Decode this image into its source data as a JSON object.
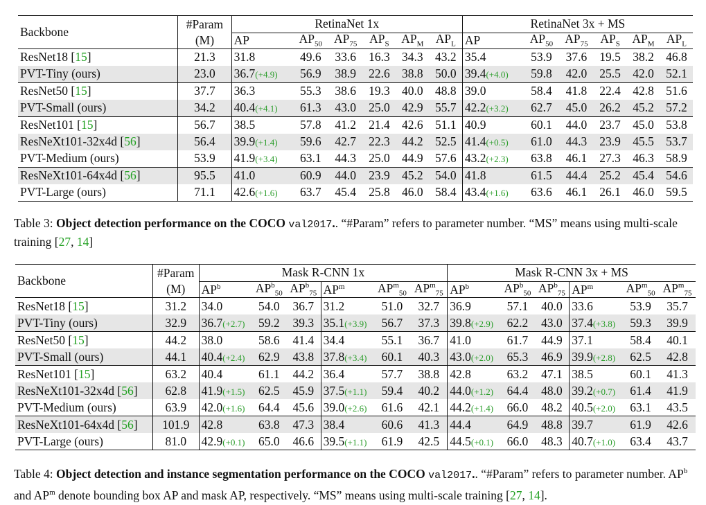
{
  "table3": {
    "backbone_header": "Backbone",
    "param_header": [
      "#Param",
      "(M)"
    ],
    "group1": "RetinaNet 1x",
    "group2": "RetinaNet 3x + MS",
    "subcols": [
      "AP",
      "AP",
      "AP",
      "AP",
      "AP",
      "AP"
    ],
    "subscripts": [
      "",
      "50",
      "75",
      "S",
      "M",
      "L"
    ],
    "rows": [
      {
        "backbone": "ResNet18",
        "ref": "15",
        "param": "21.3",
        "a": [
          "31.8",
          "",
          "49.6",
          "33.6",
          "16.3",
          "34.3",
          "43.2"
        ],
        "b": [
          "35.4",
          "",
          "53.9",
          "37.6",
          "19.5",
          "38.2",
          "46.8"
        ]
      },
      {
        "backbone": "PVT-Tiny (ours)",
        "ref": "",
        "param": "23.0",
        "a": [
          "36.7",
          "(+4.9)",
          "56.9",
          "38.9",
          "22.6",
          "38.8",
          "50.0"
        ],
        "b": [
          "39.4",
          "(+4.0)",
          "59.8",
          "42.0",
          "25.5",
          "42.0",
          "52.1"
        ]
      },
      {
        "backbone": "ResNet50",
        "ref": "15",
        "param": "37.7",
        "a": [
          "36.3",
          "",
          "55.3",
          "38.6",
          "19.3",
          "40.0",
          "48.8"
        ],
        "b": [
          "39.0",
          "",
          "58.4",
          "41.8",
          "22.4",
          "42.8",
          "51.6"
        ]
      },
      {
        "backbone": "PVT-Small (ours)",
        "ref": "",
        "param": "34.2",
        "a": [
          "40.4",
          "(+4.1)",
          "61.3",
          "43.0",
          "25.0",
          "42.9",
          "55.7"
        ],
        "b": [
          "42.2",
          "(+3.2)",
          "62.7",
          "45.0",
          "26.2",
          "45.2",
          "57.2"
        ]
      },
      {
        "backbone": "ResNet101",
        "ref": "15",
        "param": "56.7",
        "a": [
          "38.5",
          "",
          "57.8",
          "41.2",
          "21.4",
          "42.6",
          "51.1"
        ],
        "b": [
          "40.9",
          "",
          "60.1",
          "44.0",
          "23.7",
          "45.0",
          "53.8"
        ]
      },
      {
        "backbone": "ResNeXt101-32x4d",
        "ref": "56",
        "param": "56.4",
        "a": [
          "39.9",
          "(+1.4)",
          "59.6",
          "42.7",
          "22.3",
          "44.2",
          "52.5"
        ],
        "b": [
          "41.4",
          "(+0.5)",
          "61.0",
          "44.3",
          "23.9",
          "45.5",
          "53.7"
        ]
      },
      {
        "backbone": "PVT-Medium (ours)",
        "ref": "",
        "param": "53.9",
        "a": [
          "41.9",
          "(+3.4)",
          "63.1",
          "44.3",
          "25.0",
          "44.9",
          "57.6"
        ],
        "b": [
          "43.2",
          "(+2.3)",
          "63.8",
          "46.1",
          "27.3",
          "46.3",
          "58.9"
        ]
      },
      {
        "backbone": "ResNeXt101-64x4d",
        "ref": "56",
        "param": "95.5",
        "a": [
          "41.0",
          "",
          "60.9",
          "44.0",
          "23.9",
          "45.2",
          "54.0"
        ],
        "b": [
          "41.8",
          "",
          "61.5",
          "44.4",
          "25.2",
          "45.4",
          "54.6"
        ]
      },
      {
        "backbone": "PVT-Large (ours)",
        "ref": "",
        "param": "71.1",
        "a": [
          "42.6",
          "(+1.6)",
          "63.7",
          "45.4",
          "25.8",
          "46.0",
          "58.4"
        ],
        "b": [
          "43.4",
          "(+1.6)",
          "63.6",
          "46.1",
          "26.1",
          "46.0",
          "59.5"
        ]
      }
    ],
    "caption_label": "Table 3:",
    "caption_bold": "Object detection performance on the COCO",
    "caption_mono": "val2017",
    "caption_rest1": ". “#Param” refers to parameter number. “MS” means using multi-scale training [",
    "caption_ref1": "27",
    "caption_sep": ", ",
    "caption_ref2": "14",
    "caption_end": "]"
  },
  "table4": {
    "backbone_header": "Backbone",
    "param_header": [
      "#Param",
      "(M)"
    ],
    "group1": "Mask R-CNN 1x",
    "group2": "Mask R-CNN 3x + MS",
    "sup_b": "b",
    "sup_m": "m",
    "rows": [
      {
        "backbone": "ResNet18",
        "ref": "15",
        "param": "31.2",
        "a": [
          "34.0",
          "",
          "54.0",
          "36.7",
          "31.2",
          "",
          "51.0",
          "32.7"
        ],
        "b": [
          "36.9",
          "",
          "57.1",
          "40.0",
          "33.6",
          "",
          "53.9",
          "35.7"
        ]
      },
      {
        "backbone": "PVT-Tiny (ours)",
        "ref": "",
        "param": "32.9",
        "a": [
          "36.7",
          "(+2.7)",
          "59.2",
          "39.3",
          "35.1",
          "(+3.9)",
          "56.7",
          "37.3"
        ],
        "b": [
          "39.8",
          "(+2.9)",
          "62.2",
          "43.0",
          "37.4",
          "(+3.8)",
          "59.3",
          "39.9"
        ]
      },
      {
        "backbone": "ResNet50",
        "ref": "15",
        "param": "44.2",
        "a": [
          "38.0",
          "",
          "58.6",
          "41.4",
          "34.4",
          "",
          "55.1",
          "36.7"
        ],
        "b": [
          "41.0",
          "",
          "61.7",
          "44.9",
          "37.1",
          "",
          "58.4",
          "40.1"
        ]
      },
      {
        "backbone": "PVT-Small (ours)",
        "ref": "",
        "param": "44.1",
        "a": [
          "40.4",
          "(+2.4)",
          "62.9",
          "43.8",
          "37.8",
          "(+3.4)",
          "60.1",
          "40.3"
        ],
        "b": [
          "43.0",
          "(+2.0)",
          "65.3",
          "46.9",
          "39.9",
          "(+2.8)",
          "62.5",
          "42.8"
        ]
      },
      {
        "backbone": "ResNet101",
        "ref": "15",
        "param": "63.2",
        "a": [
          "40.4",
          "",
          "61.1",
          "44.2",
          "36.4",
          "",
          "57.7",
          "38.8"
        ],
        "b": [
          "42.8",
          "",
          "63.2",
          "47.1",
          "38.5",
          "",
          "60.1",
          "41.3"
        ]
      },
      {
        "backbone": "ResNeXt101-32x4d",
        "ref": "56",
        "param": "62.8",
        "a": [
          "41.9",
          "(+1.5)",
          "62.5",
          "45.9",
          "37.5",
          "(+1.1)",
          "59.4",
          "40.2"
        ],
        "b": [
          "44.0",
          "(+1.2)",
          "64.4",
          "48.0",
          "39.2",
          "(+0.7)",
          "61.4",
          "41.9"
        ]
      },
      {
        "backbone": "PVT-Medium (ours)",
        "ref": "",
        "param": "63.9",
        "a": [
          "42.0",
          "(+1.6)",
          "64.4",
          "45.6",
          "39.0",
          "(+2.6)",
          "61.6",
          "42.1"
        ],
        "b": [
          "44.2",
          "(+1.4)",
          "66.0",
          "48.2",
          "40.5",
          "(+2.0)",
          "63.1",
          "43.5"
        ]
      },
      {
        "backbone": "ResNeXt101-64x4d",
        "ref": "56",
        "param": "101.9",
        "a": [
          "42.8",
          "",
          "63.8",
          "47.3",
          "38.4",
          "",
          "60.6",
          "41.3"
        ],
        "b": [
          "44.4",
          "",
          "64.9",
          "48.8",
          "39.7",
          "",
          "61.9",
          "42.6"
        ]
      },
      {
        "backbone": "PVT-Large (ours)",
        "ref": "",
        "param": "81.0",
        "a": [
          "42.9",
          "(+0.1)",
          "65.0",
          "46.6",
          "39.5",
          "(+1.1)",
          "61.9",
          "42.5"
        ],
        "b": [
          "44.5",
          "(+0.1)",
          "66.0",
          "48.3",
          "40.7",
          "(+1.0)",
          "63.4",
          "43.7"
        ]
      }
    ],
    "caption_label": "Table 4:",
    "caption_bold": "Object detection and instance segmentation performance on the COCO",
    "caption_mono": "val2017",
    "caption_rest1": ". “#Param” refers to parameter number. AP",
    "caption_mid": " and AP",
    "caption_rest2": " denote bounding box AP and mask AP, respectively. “MS” means using multi-scale training [",
    "caption_ref1": "27",
    "caption_sep": ", ",
    "caption_ref2": "14",
    "caption_end": "]."
  }
}
